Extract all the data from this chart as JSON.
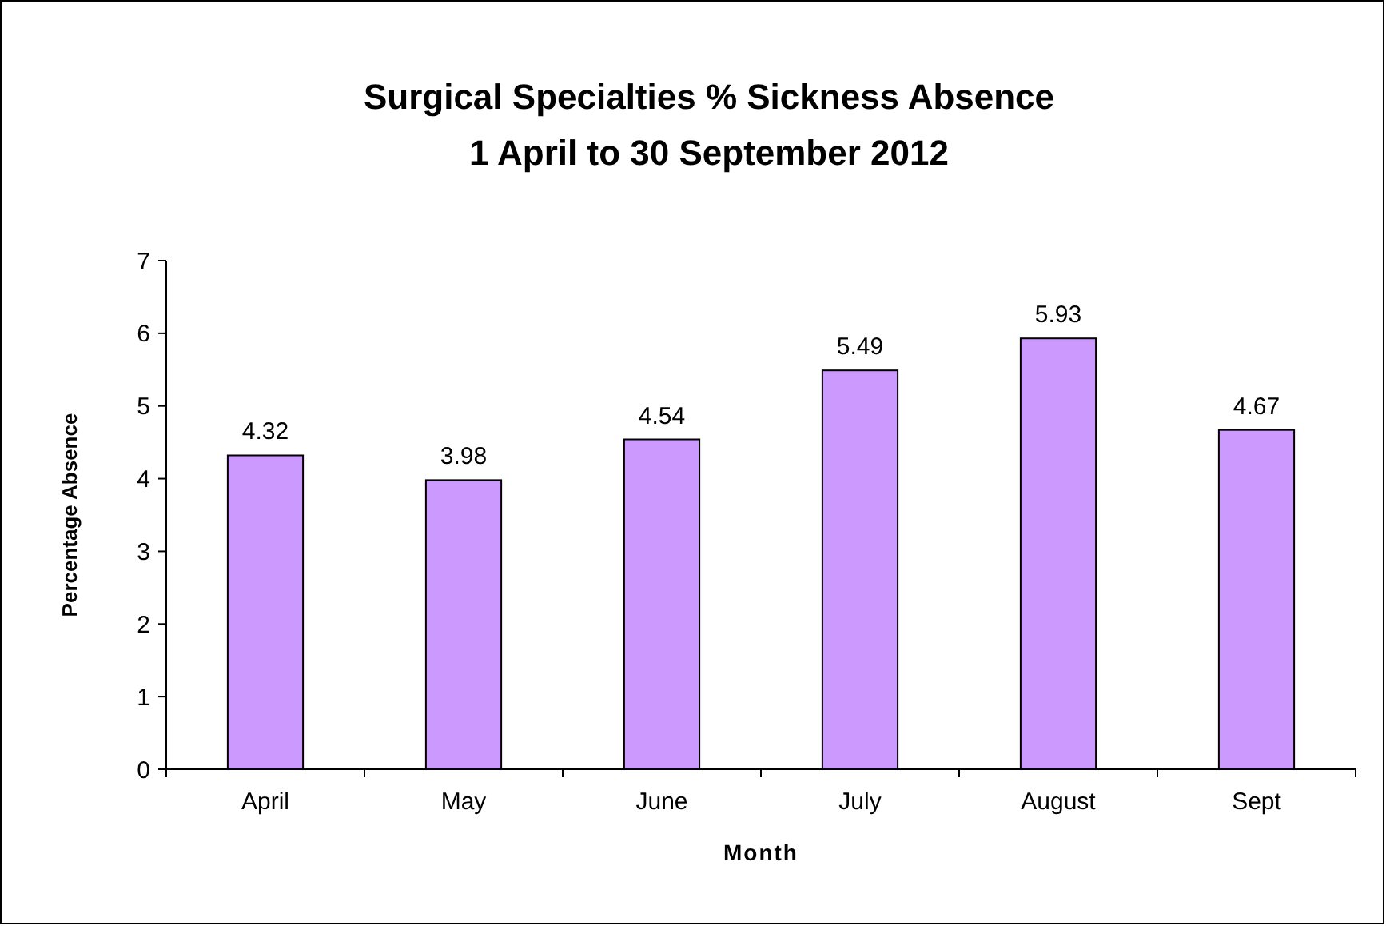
{
  "chart_data": {
    "type": "bar",
    "title": "Surgical Specialties % Sickness Absence\n1 April to 30 September 2012",
    "xlabel": "Month",
    "ylabel": "Percentage Absence",
    "categories": [
      "April",
      "May",
      "June",
      "July",
      "August",
      "Sept"
    ],
    "values": [
      4.32,
      3.98,
      4.54,
      5.49,
      5.93,
      4.67
    ],
    "color": "#cc99ff",
    "ylim": [
      0,
      7
    ],
    "yticks": [
      0,
      1,
      2,
      3,
      4,
      5,
      6,
      7
    ],
    "data_labels": true
  }
}
